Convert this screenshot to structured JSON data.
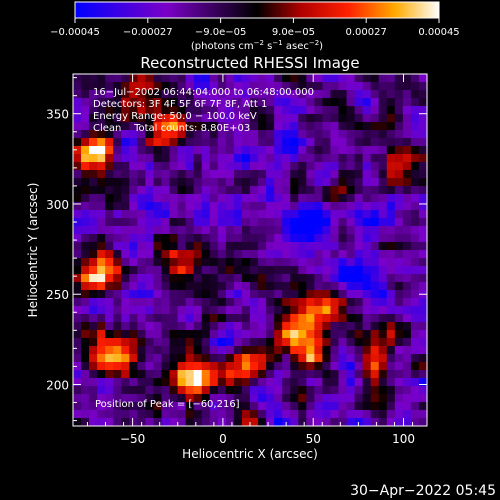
{
  "chart_data": {
    "type": "heatmap",
    "title": "Reconstructed RHESSI Image",
    "xlabel": "Heliocentric X (arcsec)",
    "ylabel": "Heliocentric Y (arcsec)",
    "xlim": [
      -83,
      113
    ],
    "ylim": [
      177,
      372
    ],
    "x_ticks": [
      -50,
      0,
      50,
      100
    ],
    "x_tick_labels": [
      "−50",
      "0",
      "50",
      "100"
    ],
    "y_ticks": [
      200,
      250,
      300,
      350
    ],
    "y_tick_labels": [
      "200",
      "250",
      "300",
      "350"
    ],
    "colorbar": {
      "colormap": "hot-blue diverging",
      "range": [
        -0.00045,
        0.00045
      ],
      "tick_labels": [
        "−0.00045",
        "−0.00027",
        "−9.0e−05",
        "9.0e−05",
        "0.00027",
        "0.00045"
      ],
      "units_text": "(photons cm",
      "units_sup1": "−2",
      "units_mid": " s",
      "units_sup2": "−1",
      "units_mid2": " asec",
      "units_sup3": "−2",
      "units_end": ")"
    },
    "annotations": {
      "time_range": "16−Jul−2002 06:44:04.000 to 06:48:00.000",
      "detectors": "Detectors: 3F 4F 5F 6F 7F 8F, Att 1",
      "energy": "Energy Range: 50.0 − 100.0 keV",
      "clean": "Clean    Total counts: 8.80E+03",
      "peak": "Position of Peak = [−60,216]"
    },
    "peak_position": [
      -60,
      216
    ],
    "bright_regions": [
      {
        "x": -72,
        "y": 328,
        "v": 1.0
      },
      {
        "x": -68,
        "y": 262,
        "v": 1.0
      },
      {
        "x": -62,
        "y": 217,
        "v": 1.0
      },
      {
        "x": -18,
        "y": 204,
        "v": 0.9
      },
      {
        "x": 42,
        "y": 222,
        "v": 0.85
      },
      {
        "x": 12,
        "y": 212,
        "v": 0.7
      },
      {
        "x": 48,
        "y": 243,
        "v": 0.75
      },
      {
        "x": -30,
        "y": 340,
        "v": 0.6
      },
      {
        "x": 85,
        "y": 215,
        "v": 0.55
      },
      {
        "x": 100,
        "y": 320,
        "v": 0.5
      },
      {
        "x": -20,
        "y": 265,
        "v": 0.55
      },
      {
        "x": -45,
        "y": 360,
        "v": 0.5
      }
    ],
    "dim_regions": [
      {
        "x": 50,
        "y": 290,
        "v": -0.5
      },
      {
        "x": 30,
        "y": 325,
        "v": -0.45
      },
      {
        "x": 75,
        "y": 262,
        "v": -0.4
      },
      {
        "x": 5,
        "y": 290,
        "v": -0.35
      }
    ]
  },
  "footer": {
    "timestamp": "30−Apr−2022 05:45"
  }
}
